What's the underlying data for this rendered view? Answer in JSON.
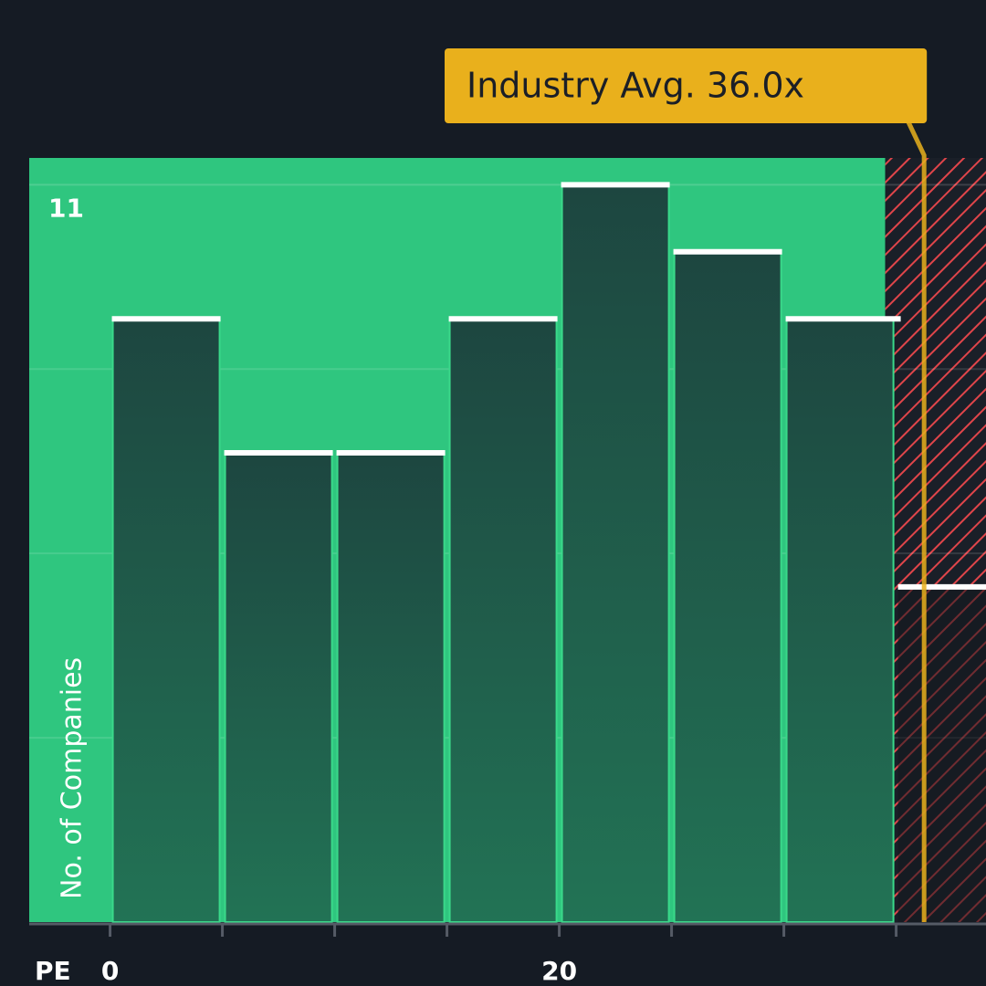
{
  "chart_data": {
    "type": "histogram",
    "bins": [
      0,
      5,
      10,
      15,
      20,
      25,
      30,
      35,
      40
    ],
    "values": [
      9,
      7,
      7,
      9,
      11,
      10,
      9,
      5
    ],
    "color": "#1f4a40",
    "cap_color": "#ffffff",
    "x_label": "PE",
    "y_label": "No. of Companies",
    "xlim": [
      -3.6,
      39
    ],
    "xticks": [
      0,
      20
    ],
    "ylim": [
      0,
      11.4
    ],
    "yticks": [
      11
    ],
    "grid": true,
    "annotation": {
      "text": "Industry Avg. 36.0x",
      "value": 36,
      "color": "#e9b01c"
    }
  }
}
